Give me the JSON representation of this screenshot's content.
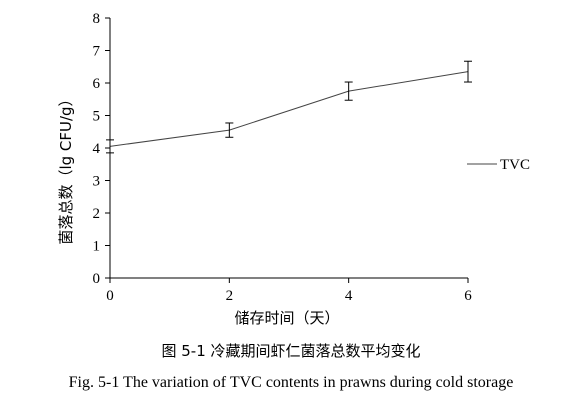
{
  "chart_data": {
    "type": "line",
    "x": [
      0,
      2,
      4,
      6
    ],
    "series": [
      {
        "name": "TVC",
        "values": [
          4.05,
          4.55,
          5.75,
          6.35
        ],
        "errors": [
          0.2,
          0.22,
          0.28,
          0.32
        ]
      }
    ],
    "xlabel": "储存时间（天）",
    "ylabel": "菌落总数（lg CFU/g）",
    "xlim": [
      0,
      6
    ],
    "ylim": [
      0,
      8
    ],
    "xticks": [
      0,
      2,
      4,
      6
    ],
    "yticks": [
      0,
      1,
      2,
      3,
      4,
      5,
      6,
      7,
      8
    ],
    "grid": false,
    "legend": "right"
  },
  "captions": {
    "cn": "图 5-1 冷藏期间虾仁菌落总数平均变化",
    "en": "Fig. 5-1 The variation of TVC contents in prawns during cold storage"
  }
}
